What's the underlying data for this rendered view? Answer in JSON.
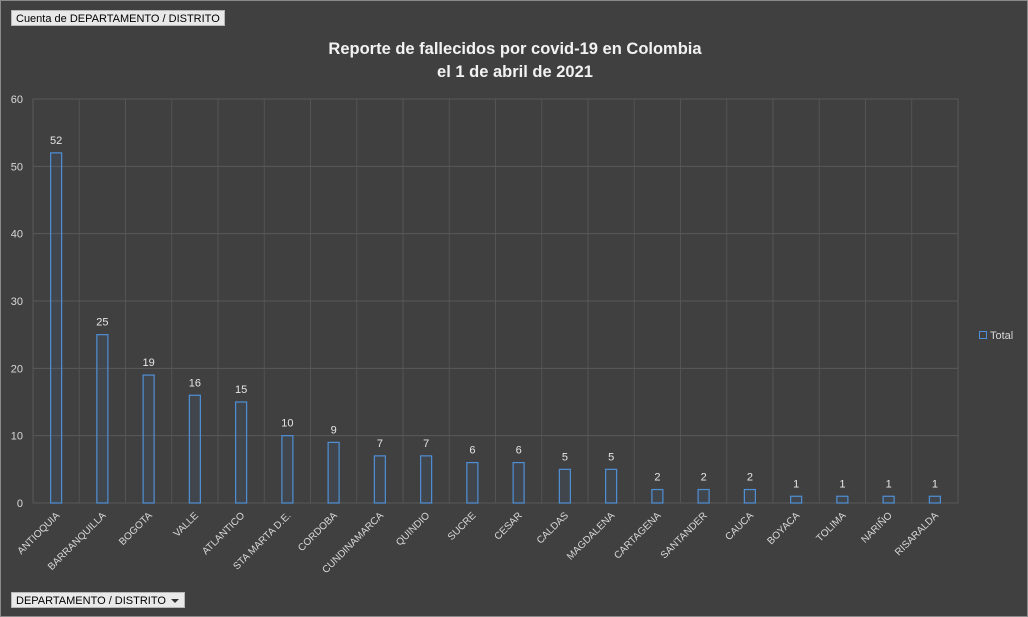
{
  "fields": {
    "values_button": "Cuenta de DEPARTAMENTO / DISTRITO",
    "axis_button": "DEPARTAMENTO / DISTRITO"
  },
  "colors": {
    "background": "#404040",
    "bar_outline": "#4f8fd6",
    "grid": "#595959",
    "text": "#d9d9d9"
  },
  "chart_data": {
    "type": "bar",
    "title": "Reporte de fallecidos por covid-19 en Colombia",
    "subtitle": "el 1 de abril de 2021",
    "categories": [
      "ANTIOQUIA",
      "BARRANQUILLA",
      "BOGOTA",
      "VALLE",
      "ATLANTICO",
      "STA MARTA D.E.",
      "CORDOBA",
      "CUNDINAMARCA",
      "QUINDIO",
      "SUCRE",
      "CESAR",
      "CALDAS",
      "MAGDALENA",
      "CARTAGENA",
      "SANTANDER",
      "CAUCA",
      "BOYACA",
      "TOLIMA",
      "NARIÑO",
      "RISARALDA"
    ],
    "series": [
      {
        "name": "Total",
        "values": [
          52,
          25,
          19,
          16,
          15,
          10,
          9,
          7,
          7,
          6,
          6,
          5,
          5,
          2,
          2,
          2,
          1,
          1,
          1,
          1
        ]
      }
    ],
    "ylim": [
      0,
      60
    ],
    "yticks": [
      0,
      10,
      20,
      30,
      40,
      50,
      60
    ],
    "grid": true,
    "legend": "right",
    "data_labels": true
  }
}
